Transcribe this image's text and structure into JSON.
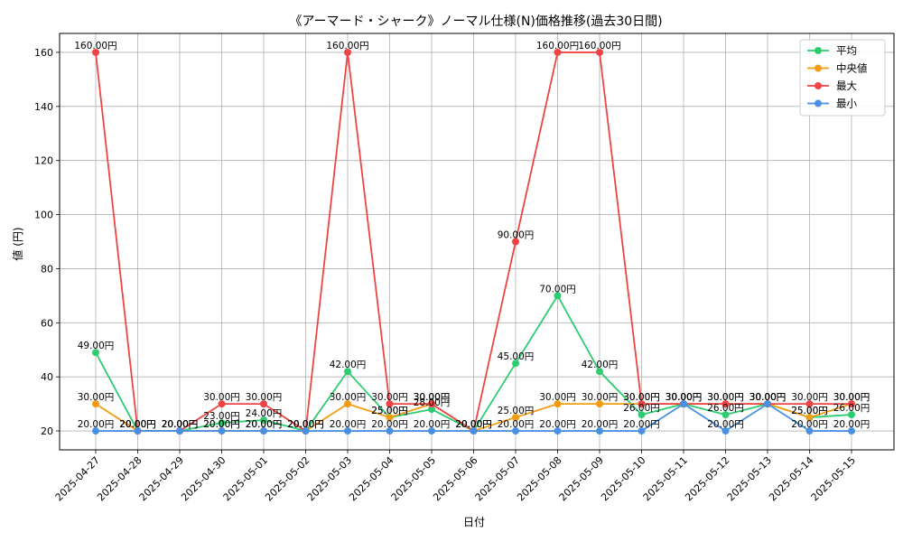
{
  "chart_data": {
    "type": "line",
    "title": "《アーマード・シャーク》ノーマル仕様(N)価格推移(過去30日間)",
    "xlabel": "日付",
    "ylabel": "値 (円)",
    "ylim": [
      13,
      167
    ],
    "yticks": [
      20,
      40,
      60,
      80,
      100,
      120,
      140,
      160
    ],
    "grid": true,
    "legend_position": "top-right",
    "label_suffix": "円",
    "categories": [
      "2025-04-27",
      "2025-04-28",
      "2025-04-29",
      "2025-04-30",
      "2025-05-01",
      "2025-05-02",
      "2025-05-03",
      "2025-05-04",
      "2025-05-05",
      "2025-05-06",
      "2025-05-07",
      "2025-05-08",
      "2025-05-09",
      "2025-05-10",
      "2025-05-11",
      "2025-05-12",
      "2025-05-13",
      "2025-05-14",
      "2025-05-15"
    ],
    "series": [
      {
        "name": "平均",
        "color": "#2ecc71",
        "values": [
          49,
          20,
          20,
          23,
          24,
          20,
          42,
          25,
          28,
          20,
          45,
          70,
          42,
          26,
          30,
          26,
          30,
          25,
          26
        ]
      },
      {
        "name": "中央値",
        "color": "#f39c12",
        "values": [
          30,
          20,
          20,
          20,
          20,
          20,
          30,
          25,
          30,
          20,
          25,
          30,
          30,
          30,
          30,
          30,
          30,
          25,
          30
        ]
      },
      {
        "name": "最大",
        "color": "#ef4444",
        "values": [
          160,
          20,
          20,
          30,
          30,
          20,
          160,
          30,
          30,
          20,
          90,
          160,
          160,
          30,
          30,
          30,
          30,
          30,
          30
        ]
      },
      {
        "name": "最小",
        "color": "#4a90e2",
        "values": [
          20,
          20,
          20,
          20,
          20,
          20,
          20,
          20,
          20,
          20,
          20,
          20,
          20,
          20,
          30,
          20,
          30,
          20,
          20
        ]
      }
    ]
  }
}
